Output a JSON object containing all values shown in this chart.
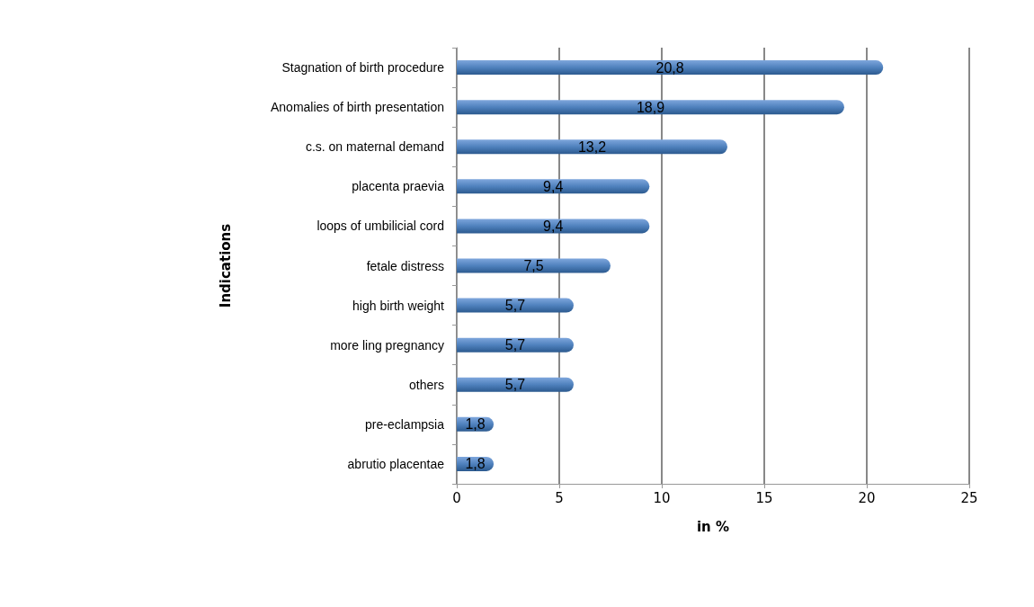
{
  "chart_data": {
    "type": "bar",
    "orientation": "horizontal",
    "xlabel": "in %",
    "ylabel": "Indications",
    "categories": [
      "Stagnation of birth procedure",
      "Anomalies of birth presentation",
      "c.s. on maternal demand",
      "placenta praevia",
      "loops of umbilicial cord",
      "fetale distress",
      "high birth weight",
      "more ling pregnancy",
      "others",
      "pre-eclampsia",
      "abrutio placentae"
    ],
    "values": [
      20.8,
      18.9,
      13.2,
      9.4,
      9.4,
      7.5,
      5.7,
      5.7,
      5.7,
      1.8,
      1.8
    ],
    "value_labels": [
      "20,8",
      "18,9",
      "13,2",
      "9,4",
      "9,4",
      "7,5",
      "5,7",
      "5,7",
      "5,7",
      "1,8",
      "1,8"
    ],
    "color": "#4f81bd",
    "xlim": [
      0,
      25
    ],
    "xticks": [
      0,
      5,
      10,
      15,
      20,
      25
    ],
    "grid": "x"
  }
}
